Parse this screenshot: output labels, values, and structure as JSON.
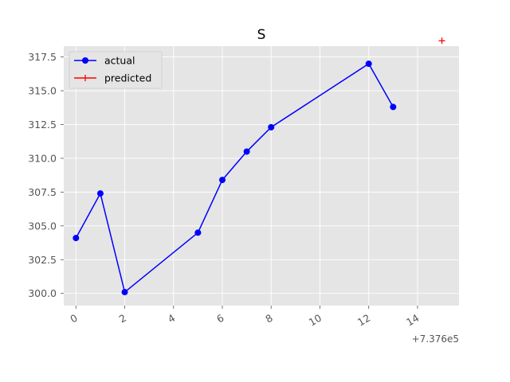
{
  "chart_data": {
    "type": "line",
    "title": "S",
    "xlabel": "",
    "ylabel": "",
    "x_offset_label": "+7.376e5",
    "xlim": [
      -0.5,
      15.7
    ],
    "ylim": [
      299.1,
      318.3
    ],
    "x_ticks": [
      0,
      2,
      4,
      6,
      8,
      10,
      12,
      14
    ],
    "y_ticks": [
      300.0,
      302.5,
      305.0,
      307.5,
      310.0,
      312.5,
      315.0,
      317.5
    ],
    "grid": true,
    "legend_position": "top-left",
    "series": [
      {
        "name": "actual",
        "color": "#0000ff",
        "marker": "circle",
        "line": true,
        "x": [
          0,
          1,
          2,
          5,
          6,
          7,
          8,
          12,
          13
        ],
        "y": [
          304.1,
          307.4,
          300.1,
          304.5,
          308.4,
          310.5,
          312.3,
          317.0,
          313.8
        ]
      },
      {
        "name": "predicted",
        "color": "#ff0000",
        "marker": "plus",
        "line": false,
        "x": [
          15
        ],
        "y": [
          318.7
        ]
      }
    ]
  }
}
